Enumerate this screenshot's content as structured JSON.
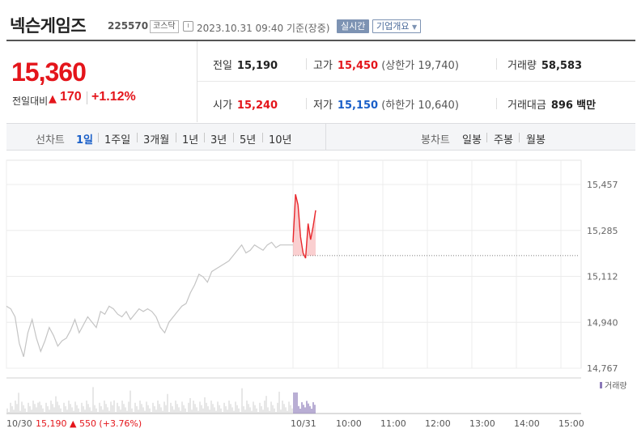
{
  "header": {
    "stock_name": "넥슨게임즈",
    "stock_code": "225570",
    "market": "코스닥",
    "timestamp": "2023.10.31 09:40  기준(장중)",
    "realtime_label": "실시간",
    "company_overview_label": "기업개요",
    "dropdown_glyph": "▼"
  },
  "price": {
    "current": "15,360",
    "change_label": "전일대비",
    "arrow": "▲",
    "change": "170",
    "change_rate": "+1.12%",
    "color": "#e4151b"
  },
  "stats": {
    "prev_close": {
      "label": "전일",
      "value": "15,190"
    },
    "high": {
      "label": "고가",
      "value": "15,450",
      "limit_label": "(상한가",
      "limit_value": "19,740)"
    },
    "volume": {
      "label": "거래량",
      "value": "58,583"
    },
    "open": {
      "label": "시가",
      "value": "15,240"
    },
    "low": {
      "label": "저가",
      "value": "15,150",
      "limit_label": "(하한가",
      "limit_value": "10,640)"
    },
    "amount": {
      "label": "거래대금",
      "value": "896",
      "unit": "백만"
    }
  },
  "line_chart_periods": {
    "title": "선차트",
    "items": [
      "1일",
      "1주일",
      "3개월",
      "1년",
      "3년",
      "5년",
      "10년"
    ],
    "active": 0
  },
  "candle_chart_periods": {
    "title": "봉차트",
    "items": [
      "일봉",
      "주봉",
      "월봉"
    ]
  },
  "chart_data": {
    "type": "line",
    "y_ticks": [
      "15,457",
      "15,285",
      "15,112",
      "14,940",
      "14,767"
    ],
    "ylim": [
      14767,
      15457
    ],
    "x_labels": [
      "10/30",
      "10/31",
      "10:00",
      "11:00",
      "12:00",
      "13:00",
      "14:00",
      "15:00"
    ],
    "prev_close": 15190,
    "legend": "거래량",
    "footer": {
      "date": "10/30",
      "close": "15,190",
      "arrow": "▲",
      "change": "550",
      "rate": "(+3.76%)"
    },
    "series": [
      {
        "values": [
          15000,
          14990,
          14960,
          14860,
          14810,
          14900,
          14950,
          14880,
          14830,
          14870,
          14920,
          14890,
          14850,
          14870,
          14880,
          14910,
          14950,
          14900,
          14930,
          14960,
          14940,
          14920,
          14980,
          14970,
          15000,
          14990,
          14970,
          14960,
          14980,
          14950,
          14970,
          14990,
          14980,
          14990,
          14980,
          14960,
          14920,
          14900,
          14940,
          14960,
          14980,
          15000,
          15010,
          15050,
          15080,
          15120,
          15110,
          15090,
          15130,
          15140,
          15150,
          15160,
          15170,
          15190,
          15210,
          15230,
          15200,
          15210,
          15230,
          15220,
          15210,
          15230,
          15240,
          15220,
          15230,
          15230,
          15230,
          15230
        ]
      },
      {
        "values": [
          15240,
          15420,
          15380,
          15260,
          15200,
          15180,
          15310,
          15250,
          15300,
          15360
        ]
      }
    ],
    "colors": {
      "prev_day": "#c4c4c4",
      "up": "#e8262b",
      "down": "#2f64c3",
      "volume": "#8a78b8"
    }
  }
}
